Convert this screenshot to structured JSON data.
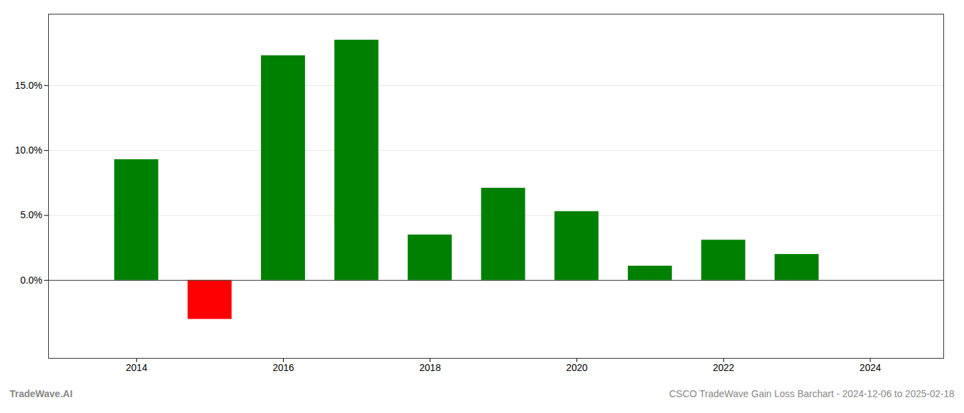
{
  "chart_data": {
    "type": "bar",
    "title": "CSCO TradeWave Gain Loss Barchart - 2024-12-06 to 2025-02-18",
    "annotations": [
      "TradeWave.AI"
    ],
    "x": [
      2014,
      2015,
      2016,
      2017,
      2018,
      2019,
      2020,
      2021,
      2022,
      2023
    ],
    "values": [
      0.093,
      -0.03,
      0.173,
      0.185,
      0.035,
      0.071,
      0.053,
      0.011,
      0.031,
      0.02
    ],
    "colors": [
      "#008000",
      "#ff0000",
      "#008000",
      "#008000",
      "#008000",
      "#008000",
      "#008000",
      "#008000",
      "#008000",
      "#008000"
    ],
    "xlim": [
      2012.8,
      2025.0
    ],
    "xticks": [
      2014,
      2016,
      2018,
      2020,
      2022,
      2024
    ],
    "ylim": [
      -0.06,
      0.205
    ],
    "yticks": [
      {
        "value": 0.0,
        "label": "0.0%"
      },
      {
        "value": 0.05,
        "label": "5.0%"
      },
      {
        "value": 0.1,
        "label": "10.0%"
      },
      {
        "value": 0.15,
        "label": "15.0%"
      }
    ],
    "grid": true
  }
}
